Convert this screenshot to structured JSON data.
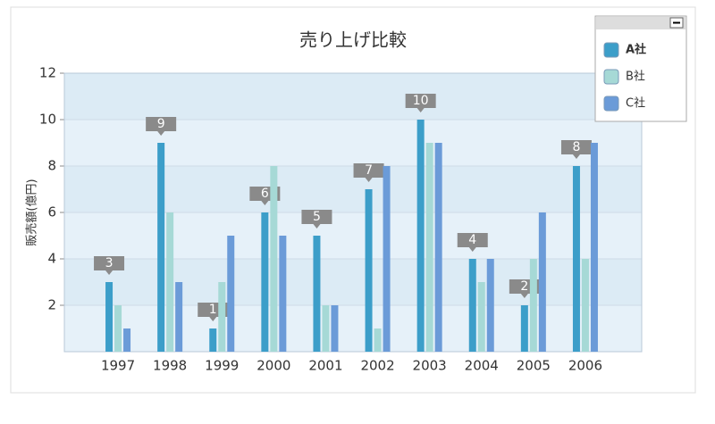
{
  "chart_data": {
    "type": "bar",
    "title": "売り上げ比較",
    "y_label": "販売額(億円)",
    "categories": [
      "1997",
      "1998",
      "1999",
      "2000",
      "2001",
      "2002",
      "2003",
      "2004",
      "2005",
      "2006"
    ],
    "series": [
      {
        "name": "A社",
        "color": "#3c9ec9",
        "values": [
          3,
          9,
          1,
          6,
          5,
          7,
          10,
          4,
          2,
          8
        ],
        "data_labels": true
      },
      {
        "name": "B社",
        "color": "#a6d9d6",
        "values": [
          2,
          6,
          3,
          8,
          2,
          1,
          9,
          3,
          4,
          4
        ],
        "data_labels": false
      },
      {
        "name": "C社",
        "color": "#6b9bd8",
        "values": [
          1,
          3,
          5,
          5,
          2,
          8,
          9,
          4,
          6,
          9
        ],
        "data_labels": false
      }
    ],
    "ylim": [
      0,
      12
    ],
    "yticks": [
      2,
      4,
      6,
      8,
      10,
      12
    ],
    "grid": true,
    "legend": "top-right"
  }
}
